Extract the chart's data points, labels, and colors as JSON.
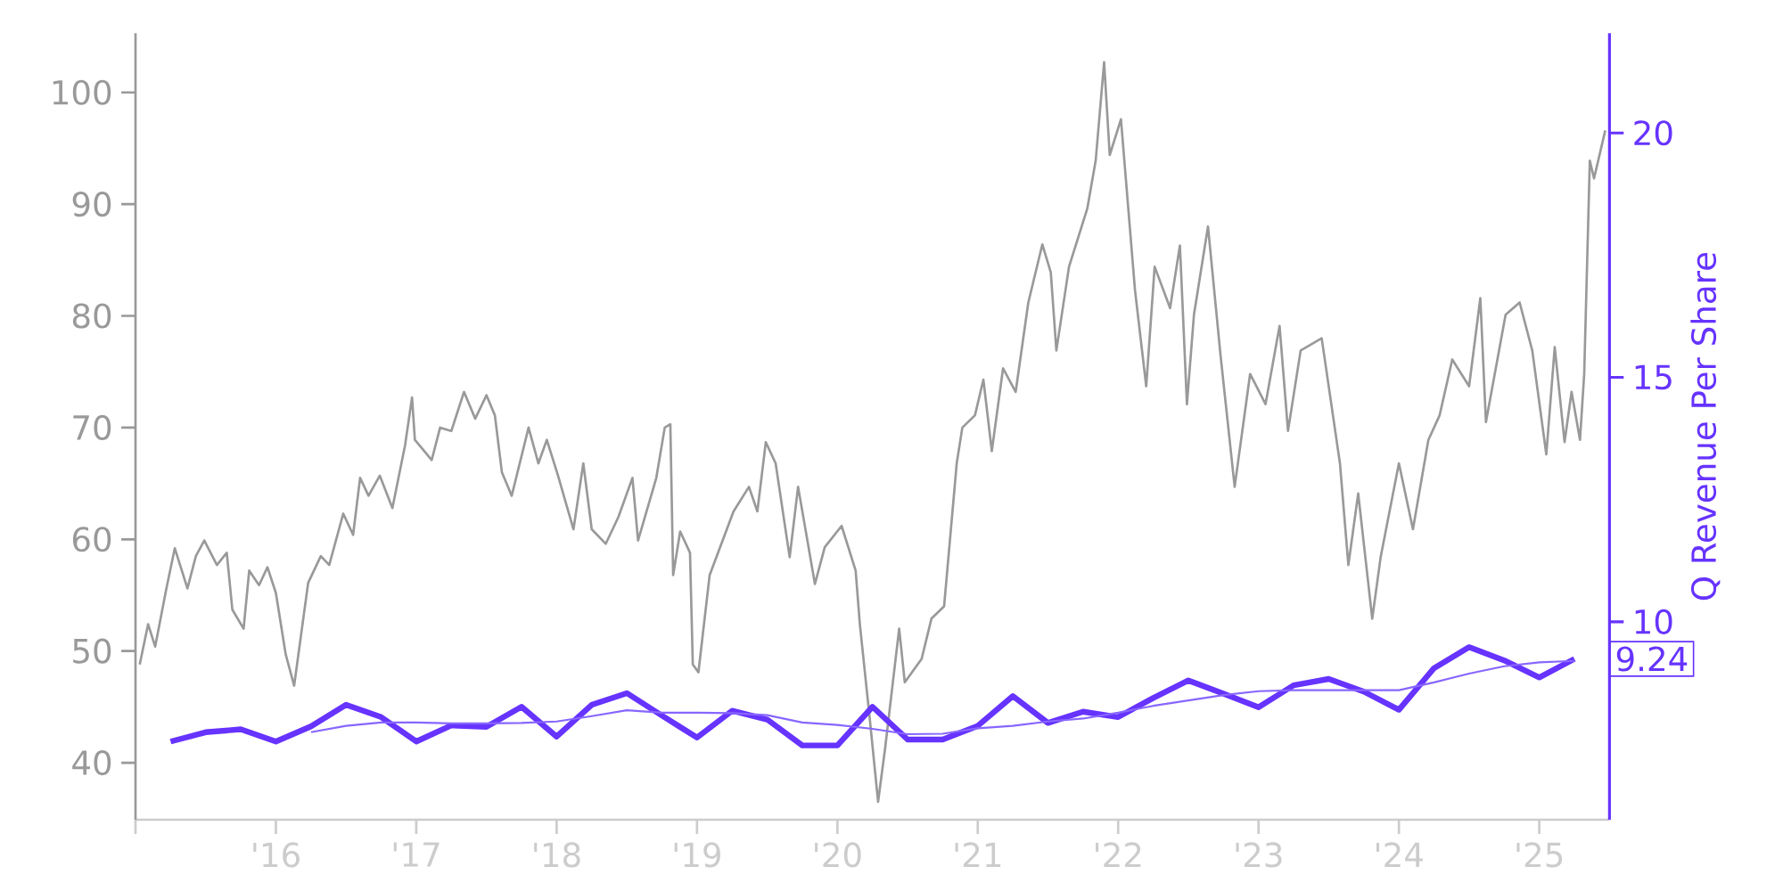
{
  "chart_data": {
    "type": "line",
    "xlim": [
      2015.0,
      2025.5
    ],
    "xticks": [
      {
        "value": 2015,
        "label": null
      },
      {
        "value": 2016,
        "label": "'16"
      },
      {
        "value": 2017,
        "label": "'17"
      },
      {
        "value": 2018,
        "label": "'18"
      },
      {
        "value": 2019,
        "label": "'19"
      },
      {
        "value": 2020,
        "label": "'20"
      },
      {
        "value": 2021,
        "label": "'21"
      },
      {
        "value": 2022,
        "label": "'22"
      },
      {
        "value": 2023,
        "label": "'23"
      },
      {
        "value": 2024,
        "label": "'24"
      },
      {
        "value": 2025,
        "label": "'25"
      }
    ],
    "ylim": [
      34.9,
      105.3
    ],
    "yticks": [
      40,
      50,
      60,
      70,
      80,
      90,
      100
    ],
    "y2lim": [
      5.95,
      22.04
    ],
    "y2ticks": [
      10,
      15,
      20
    ],
    "y2label": "Q Revenue Per Share",
    "marker": "none",
    "line_style": "solid",
    "series": [
      {
        "color": "#999999",
        "axis": "y",
        "x": [
          2015.03,
          2015.09,
          2015.14,
          2015.22,
          2015.28,
          2015.37,
          2015.43,
          2015.49,
          2015.58,
          2015.65,
          2015.69,
          2015.77,
          2015.81,
          2015.88,
          2015.94,
          2016.0,
          2016.07,
          2016.13,
          2016.23,
          2016.32,
          2016.38,
          2016.48,
          2016.55,
          2016.6,
          2016.66,
          2016.74,
          2016.83,
          2016.92,
          2016.97,
          2016.99,
          2017.11,
          2017.17,
          2017.25,
          2017.34,
          2017.42,
          2017.5,
          2017.56,
          2017.61,
          2017.68,
          2017.8,
          2017.87,
          2017.93,
          2018.01,
          2018.12,
          2018.19,
          2018.25,
          2018.35,
          2018.44,
          2018.54,
          2018.58,
          2018.71,
          2018.77,
          2018.81,
          2018.83,
          2018.88,
          2018.95,
          2018.97,
          2019.01,
          2019.09,
          2019.26,
          2019.37,
          2019.43,
          2019.49,
          2019.56,
          2019.66,
          2019.72,
          2019.84,
          2019.91,
          2020.03,
          2020.13,
          2020.16,
          2020.23,
          2020.29,
          2020.34,
          2020.44,
          2020.48,
          2020.6,
          2020.67,
          2020.76,
          2020.85,
          2020.89,
          2020.98,
          2021.04,
          2021.1,
          2021.18,
          2021.27,
          2021.36,
          2021.46,
          2021.52,
          2021.56,
          2021.65,
          2021.78,
          2021.84,
          2021.9,
          2021.94,
          2022.02,
          2022.12,
          2022.2,
          2022.26,
          2022.37,
          2022.44,
          2022.49,
          2022.54,
          2022.64,
          2022.73,
          2022.83,
          2022.94,
          2023.05,
          2023.15,
          2023.21,
          2023.3,
          2023.45,
          2023.58,
          2023.64,
          2023.71,
          2023.81,
          2023.87,
          2024.0,
          2024.1,
          2024.21,
          2024.29,
          2024.38,
          2024.5,
          2024.58,
          2024.62,
          2024.76,
          2024.86,
          2024.95,
          2025.05,
          2025.11,
          2025.18,
          2025.23,
          2025.29,
          2025.32,
          2025.36,
          2025.39,
          2025.47
        ],
        "values": [
          48.8,
          52.4,
          50.4,
          55.6,
          59.2,
          55.6,
          58.5,
          59.9,
          57.7,
          58.8,
          53.7,
          52.0,
          57.2,
          55.9,
          57.5,
          55.2,
          49.7,
          46.9,
          56.1,
          58.5,
          57.7,
          62.3,
          60.4,
          65.5,
          63.9,
          65.7,
          62.8,
          68.4,
          72.7,
          68.9,
          67.1,
          70.0,
          69.7,
          73.2,
          70.8,
          72.9,
          71.1,
          66.0,
          63.9,
          70.0,
          66.8,
          68.9,
          65.7,
          60.9,
          66.8,
          60.9,
          59.6,
          62.0,
          65.5,
          59.9,
          65.5,
          70.0,
          70.3,
          56.8,
          60.7,
          58.8,
          48.8,
          48.1,
          56.8,
          62.5,
          64.7,
          62.5,
          68.7,
          66.8,
          58.4,
          64.7,
          56.0,
          59.3,
          61.2,
          57.2,
          52.4,
          44.0,
          36.5,
          41.3,
          52.0,
          47.2,
          49.3,
          52.9,
          54.0,
          66.8,
          70.0,
          71.1,
          74.3,
          67.9,
          75.3,
          73.2,
          81.2,
          86.4,
          83.9,
          76.9,
          84.4,
          89.6,
          93.9,
          102.7,
          94.4,
          97.6,
          82.3,
          73.7,
          84.4,
          80.7,
          86.3,
          72.1,
          80.1,
          88.0,
          76.4,
          64.7,
          74.8,
          72.1,
          79.1,
          69.7,
          76.9,
          78.0,
          66.8,
          57.7,
          64.1,
          52.9,
          58.4,
          66.8,
          60.9,
          68.9,
          71.1,
          76.1,
          73.7,
          81.6,
          70.5,
          80.1,
          81.2,
          76.9,
          67.6,
          77.2,
          68.7,
          73.2,
          68.9,
          74.8,
          93.9,
          92.3,
          96.6
        ]
      },
      {
        "color": "#6633ff",
        "axis": "y2",
        "x": [
          2015.25,
          2015.5,
          2015.75,
          2016.0,
          2016.25,
          2016.5,
          2016.75,
          2017.0,
          2017.25,
          2017.5,
          2017.75,
          2018.0,
          2018.25,
          2018.5,
          2018.75,
          2019.0,
          2019.25,
          2019.5,
          2019.75,
          2020.0,
          2020.25,
          2020.5,
          2020.75,
          2021.0,
          2021.25,
          2021.5,
          2021.75,
          2022.0,
          2022.25,
          2022.5,
          2022.75,
          2023.0,
          2023.25,
          2023.5,
          2023.75,
          2024.0,
          2024.25,
          2024.5,
          2024.75,
          2025.0,
          2025.25
        ],
        "values": [
          7.55,
          7.74,
          7.8,
          7.55,
          7.86,
          8.3,
          8.05,
          7.55,
          7.88,
          7.85,
          8.26,
          7.65,
          8.3,
          8.54,
          8.08,
          7.63,
          8.18,
          8.0,
          7.47,
          7.47,
          8.26,
          7.59,
          7.59,
          7.87,
          8.48,
          7.93,
          8.16,
          8.05,
          8.44,
          8.8,
          8.53,
          8.25,
          8.7,
          8.83,
          8.57,
          8.2,
          9.05,
          9.48,
          9.21,
          8.86,
          9.24
        ],
        "value_labels": [
          null,
          null,
          null,
          null,
          null,
          null,
          null,
          null,
          null,
          null,
          null,
          null,
          null,
          null,
          null,
          null,
          null,
          null,
          null,
          null,
          null,
          null,
          null,
          null,
          null,
          null,
          null,
          null,
          null,
          null,
          null,
          null,
          null,
          null,
          null,
          null,
          null,
          null,
          null,
          null,
          "9.24"
        ]
      },
      {
        "color": "#8866ff",
        "axis": "y2",
        "x": [
          2016.25,
          2016.5,
          2016.75,
          2017.0,
          2017.25,
          2017.5,
          2017.75,
          2018.0,
          2018.25,
          2018.5,
          2018.75,
          2019.0,
          2019.25,
          2019.5,
          2019.75,
          2020.0,
          2020.25,
          2020.5,
          2020.75,
          2021.0,
          2021.25,
          2021.5,
          2021.75,
          2022.0,
          2022.25,
          2022.5,
          2022.75,
          2023.0,
          2023.25,
          2023.5,
          2023.75,
          2024.0,
          2024.25,
          2024.5,
          2024.75,
          2025.0,
          2025.25
        ],
        "values": [
          7.74,
          7.87,
          7.94,
          7.94,
          7.92,
          7.92,
          7.93,
          7.96,
          8.07,
          8.19,
          8.14,
          8.14,
          8.13,
          8.09,
          7.94,
          7.89,
          7.81,
          7.7,
          7.71,
          7.82,
          7.87,
          7.96,
          8.02,
          8.14,
          8.28,
          8.39,
          8.5,
          8.58,
          8.6,
          8.6,
          8.6,
          8.6,
          8.76,
          8.94,
          9.09,
          9.17,
          9.2
        ]
      }
    ]
  }
}
